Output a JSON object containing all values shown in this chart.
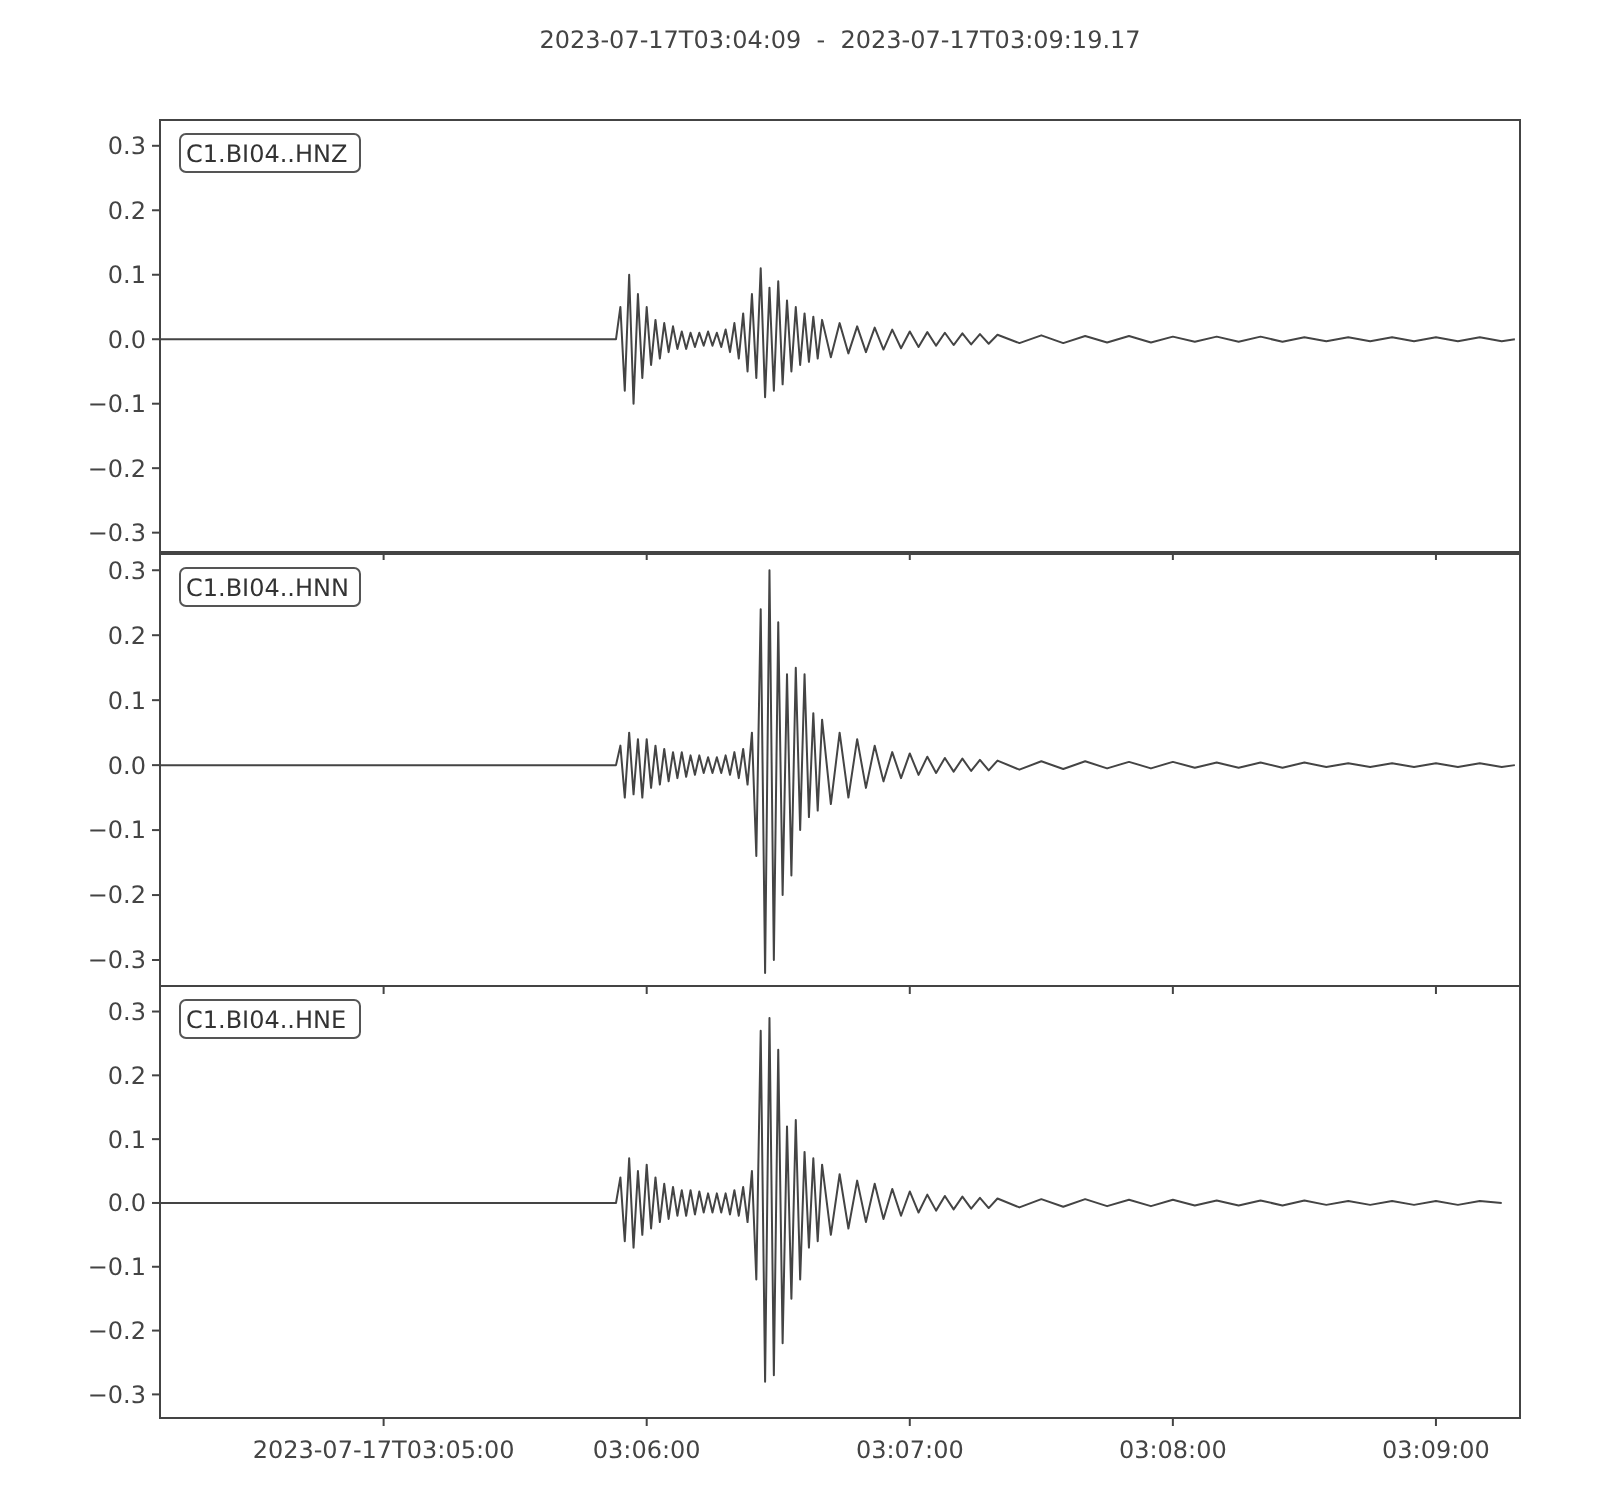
{
  "chart_data": [
    {
      "type": "line",
      "title": "2023-07-17T03:04:09  -  2023-07-17T03:09:19.17",
      "annotations": [
        "C1.BI04..HNZ"
      ],
      "tick_labels": "y",
      "color": "#444444",
      "xlim": [
        "2023-07-17T03:04:09",
        "2023-07-17T03:09:19.17"
      ],
      "ylim": [
        -0.33,
        0.34
      ],
      "xticks": [
        {
          "value": "2023-07-17T03:05:00",
          "label": null
        },
        {
          "value": "2023-07-17T03:06:00",
          "label": null
        },
        {
          "value": "2023-07-17T03:07:00",
          "label": null
        },
        {
          "value": "2023-07-17T03:08:00",
          "label": null
        },
        {
          "value": "2023-07-17T03:09:00",
          "label": null
        }
      ],
      "yticks": [
        {
          "value": -0.3,
          "label": "−0.3"
        },
        {
          "value": -0.2,
          "label": "−0.2"
        },
        {
          "value": -0.1,
          "label": "−0.1"
        },
        {
          "value": 0,
          "label": "0.0"
        },
        {
          "value": 0.1,
          "label": "0.1"
        },
        {
          "value": 0.2,
          "label": "0.2"
        },
        {
          "value": 0.3,
          "label": "0.3"
        }
      ],
      "x": [
        "2023-07-17T03:04:09",
        "2023-07-17T03:05:53",
        "2023-07-17T03:05:54",
        "2023-07-17T03:05:55",
        "2023-07-17T03:05:56",
        "2023-07-17T03:05:57",
        "2023-07-17T03:05:58",
        "2023-07-17T03:05:59",
        "2023-07-17T03:06:00",
        "2023-07-17T03:06:01",
        "2023-07-17T03:06:02",
        "2023-07-17T03:06:03",
        "2023-07-17T03:06:04",
        "2023-07-17T03:06:05",
        "2023-07-17T03:06:06",
        "2023-07-17T03:06:07",
        "2023-07-17T03:06:08",
        "2023-07-17T03:06:09",
        "2023-07-17T03:06:10",
        "2023-07-17T03:06:11",
        "2023-07-17T03:06:12",
        "2023-07-17T03:06:13",
        "2023-07-17T03:06:14",
        "2023-07-17T03:06:15",
        "2023-07-17T03:06:16",
        "2023-07-17T03:06:17",
        "2023-07-17T03:06:18",
        "2023-07-17T03:06:19",
        "2023-07-17T03:06:20",
        "2023-07-17T03:06:21",
        "2023-07-17T03:06:22",
        "2023-07-17T03:06:23",
        "2023-07-17T03:06:24",
        "2023-07-17T03:06:25",
        "2023-07-17T03:06:26",
        "2023-07-17T03:06:27",
        "2023-07-17T03:06:28",
        "2023-07-17T03:06:29",
        "2023-07-17T03:06:30",
        "2023-07-17T03:06:31",
        "2023-07-17T03:06:32",
        "2023-07-17T03:06:33",
        "2023-07-17T03:06:34",
        "2023-07-17T03:06:35",
        "2023-07-17T03:06:36",
        "2023-07-17T03:06:37",
        "2023-07-17T03:06:38",
        "2023-07-17T03:06:39",
        "2023-07-17T03:06:40",
        "2023-07-17T03:06:42",
        "2023-07-17T03:06:44",
        "2023-07-17T03:06:46",
        "2023-07-17T03:06:48",
        "2023-07-17T03:06:50",
        "2023-07-17T03:06:52",
        "2023-07-17T03:06:54",
        "2023-07-17T03:06:56",
        "2023-07-17T03:06:58",
        "2023-07-17T03:07:00",
        "2023-07-17T03:07:02",
        "2023-07-17T03:07:04",
        "2023-07-17T03:07:06",
        "2023-07-17T03:07:08",
        "2023-07-17T03:07:10",
        "2023-07-17T03:07:12",
        "2023-07-17T03:07:14",
        "2023-07-17T03:07:16",
        "2023-07-17T03:07:18",
        "2023-07-17T03:07:20",
        "2023-07-17T03:07:25",
        "2023-07-17T03:07:30",
        "2023-07-17T03:07:35",
        "2023-07-17T03:07:40",
        "2023-07-17T03:07:45",
        "2023-07-17T03:07:50",
        "2023-07-17T03:07:55",
        "2023-07-17T03:08:00",
        "2023-07-17T03:08:05",
        "2023-07-17T03:08:10",
        "2023-07-17T03:08:15",
        "2023-07-17T03:08:20",
        "2023-07-17T03:08:25",
        "2023-07-17T03:08:30",
        "2023-07-17T03:08:35",
        "2023-07-17T03:08:40",
        "2023-07-17T03:08:45",
        "2023-07-17T03:08:50",
        "2023-07-17T03:08:55",
        "2023-07-17T03:09:00",
        "2023-07-17T03:09:05",
        "2023-07-17T03:09:10",
        "2023-07-17T03:09:15",
        "2023-07-17T03:09:18"
      ],
      "values": [
        0,
        0,
        0.05,
        -0.08,
        0.1,
        -0.1,
        0.07,
        -0.06,
        0.05,
        -0.04,
        0.03,
        -0.03,
        0.025,
        -0.02,
        0.02,
        -0.015,
        0.012,
        -0.015,
        0.01,
        -0.012,
        0.01,
        -0.01,
        0.012,
        -0.01,
        0.01,
        -0.012,
        0.015,
        -0.02,
        0.025,
        -0.03,
        0.04,
        -0.05,
        0.07,
        -0.06,
        0.11,
        -0.09,
        0.08,
        -0.08,
        0.09,
        -0.07,
        0.06,
        -0.05,
        0.05,
        -0.04,
        0.04,
        -0.035,
        0.035,
        -0.03,
        0.03,
        -0.028,
        0.025,
        -0.022,
        0.02,
        -0.02,
        0.018,
        -0.016,
        0.015,
        -0.014,
        0.012,
        -0.012,
        0.011,
        -0.01,
        0.01,
        -0.009,
        0.009,
        -0.008,
        0.008,
        -0.007,
        0.007,
        -0.006,
        0.006,
        -0.006,
        0.005,
        -0.005,
        0.005,
        -0.005,
        0.004,
        -0.004,
        0.004,
        -0.004,
        0.004,
        -0.004,
        0.003,
        -0.003,
        0.003,
        -0.003,
        0.003,
        -0.003,
        0.003,
        -0.003,
        0.003,
        -0.003,
        0
      ]
    },
    {
      "type": "line",
      "annotations": [
        "C1.BI04..HNN"
      ],
      "tick_labels": "y",
      "color": "#444444",
      "xlim": [
        "2023-07-17T03:04:09",
        "2023-07-17T03:09:19.17"
      ],
      "ylim": [
        -0.34,
        0.325
      ],
      "xticks": [
        {
          "value": "2023-07-17T03:05:00",
          "label": null
        },
        {
          "value": "2023-07-17T03:06:00",
          "label": null
        },
        {
          "value": "2023-07-17T03:07:00",
          "label": null
        },
        {
          "value": "2023-07-17T03:08:00",
          "label": null
        },
        {
          "value": "2023-07-17T03:09:00",
          "label": null
        }
      ],
      "yticks": [
        {
          "value": -0.3,
          "label": "−0.3"
        },
        {
          "value": -0.2,
          "label": "−0.2"
        },
        {
          "value": -0.1,
          "label": "−0.1"
        },
        {
          "value": 0,
          "label": "0.0"
        },
        {
          "value": 0.1,
          "label": "0.1"
        },
        {
          "value": 0.2,
          "label": "0.2"
        },
        {
          "value": 0.3,
          "label": "0.3"
        }
      ],
      "x": [
        "2023-07-17T03:04:09",
        "2023-07-17T03:05:53",
        "2023-07-17T03:05:54",
        "2023-07-17T03:05:55",
        "2023-07-17T03:05:56",
        "2023-07-17T03:05:57",
        "2023-07-17T03:05:58",
        "2023-07-17T03:05:59",
        "2023-07-17T03:06:00",
        "2023-07-17T03:06:01",
        "2023-07-17T03:06:02",
        "2023-07-17T03:06:03",
        "2023-07-17T03:06:04",
        "2023-07-17T03:06:05",
        "2023-07-17T03:06:06",
        "2023-07-17T03:06:07",
        "2023-07-17T03:06:08",
        "2023-07-17T03:06:09",
        "2023-07-17T03:06:10",
        "2023-07-17T03:06:11",
        "2023-07-17T03:06:12",
        "2023-07-17T03:06:13",
        "2023-07-17T03:06:14",
        "2023-07-17T03:06:15",
        "2023-07-17T03:06:16",
        "2023-07-17T03:06:17",
        "2023-07-17T03:06:18",
        "2023-07-17T03:06:19",
        "2023-07-17T03:06:20",
        "2023-07-17T03:06:21",
        "2023-07-17T03:06:22",
        "2023-07-17T03:06:23",
        "2023-07-17T03:06:24",
        "2023-07-17T03:06:25",
        "2023-07-17T03:06:26",
        "2023-07-17T03:06:27",
        "2023-07-17T03:06:28",
        "2023-07-17T03:06:29",
        "2023-07-17T03:06:30",
        "2023-07-17T03:06:31",
        "2023-07-17T03:06:32",
        "2023-07-17T03:06:33",
        "2023-07-17T03:06:34",
        "2023-07-17T03:06:35",
        "2023-07-17T03:06:36",
        "2023-07-17T03:06:37",
        "2023-07-17T03:06:38",
        "2023-07-17T03:06:39",
        "2023-07-17T03:06:40",
        "2023-07-17T03:06:42",
        "2023-07-17T03:06:44",
        "2023-07-17T03:06:46",
        "2023-07-17T03:06:48",
        "2023-07-17T03:06:50",
        "2023-07-17T03:06:52",
        "2023-07-17T03:06:54",
        "2023-07-17T03:06:56",
        "2023-07-17T03:06:58",
        "2023-07-17T03:07:00",
        "2023-07-17T03:07:02",
        "2023-07-17T03:07:04",
        "2023-07-17T03:07:06",
        "2023-07-17T03:07:08",
        "2023-07-17T03:07:10",
        "2023-07-17T03:07:12",
        "2023-07-17T03:07:14",
        "2023-07-17T03:07:16",
        "2023-07-17T03:07:18",
        "2023-07-17T03:07:20",
        "2023-07-17T03:07:25",
        "2023-07-17T03:07:30",
        "2023-07-17T03:07:35",
        "2023-07-17T03:07:40",
        "2023-07-17T03:07:45",
        "2023-07-17T03:07:50",
        "2023-07-17T03:07:55",
        "2023-07-17T03:08:00",
        "2023-07-17T03:08:05",
        "2023-07-17T03:08:10",
        "2023-07-17T03:08:15",
        "2023-07-17T03:08:20",
        "2023-07-17T03:08:25",
        "2023-07-17T03:08:30",
        "2023-07-17T03:08:35",
        "2023-07-17T03:08:40",
        "2023-07-17T03:08:45",
        "2023-07-17T03:08:50",
        "2023-07-17T03:08:55",
        "2023-07-17T03:09:00",
        "2023-07-17T03:09:05",
        "2023-07-17T03:09:10",
        "2023-07-17T03:09:15",
        "2023-07-17T03:09:18"
      ],
      "values": [
        0,
        0,
        0.03,
        -0.05,
        0.05,
        -0.045,
        0.04,
        -0.05,
        0.04,
        -0.035,
        0.03,
        -0.03,
        0.025,
        -0.025,
        0.02,
        -0.02,
        0.02,
        -0.018,
        0.015,
        -0.015,
        0.015,
        -0.012,
        0.012,
        -0.012,
        0.012,
        -0.012,
        0.015,
        -0.015,
        0.02,
        -0.02,
        0.025,
        -0.03,
        0.05,
        -0.14,
        0.24,
        -0.32,
        0.3,
        -0.3,
        0.22,
        -0.2,
        0.14,
        -0.17,
        0.15,
        -0.1,
        0.14,
        -0.08,
        0.08,
        -0.07,
        0.07,
        -0.06,
        0.05,
        -0.05,
        0.04,
        -0.035,
        0.03,
        -0.025,
        0.02,
        -0.02,
        0.018,
        -0.015,
        0.013,
        -0.012,
        0.011,
        -0.01,
        0.01,
        -0.009,
        0.008,
        -0.008,
        0.007,
        -0.007,
        0.006,
        -0.006,
        0.006,
        -0.005,
        0.005,
        -0.005,
        0.005,
        -0.004,
        0.004,
        -0.004,
        0.004,
        -0.004,
        0.004,
        -0.003,
        0.003,
        -0.003,
        0.003,
        -0.003,
        0.003,
        -0.003,
        0.003,
        -0.003,
        0
      ]
    },
    {
      "type": "line",
      "annotations": [
        "C1.BI04..HNE"
      ],
      "color": "#444444",
      "xlim": [
        "2023-07-17T03:04:09",
        "2023-07-17T03:09:19.17"
      ],
      "ylim": [
        -0.337,
        0.34
      ],
      "xticks": [
        {
          "value": "2023-07-17T03:05:00",
          "label": "2023-07-17T03:05:00"
        },
        {
          "value": "2023-07-17T03:06:00",
          "label": "03:06:00"
        },
        {
          "value": "2023-07-17T03:07:00",
          "label": "03:07:00"
        },
        {
          "value": "2023-07-17T03:08:00",
          "label": "03:08:00"
        },
        {
          "value": "2023-07-17T03:09:00",
          "label": "03:09:00"
        }
      ],
      "yticks": [
        {
          "value": -0.3,
          "label": "−0.3"
        },
        {
          "value": -0.2,
          "label": "−0.2"
        },
        {
          "value": -0.1,
          "label": "−0.1"
        },
        {
          "value": 0,
          "label": "0.0"
        },
        {
          "value": 0.1,
          "label": "0.1"
        },
        {
          "value": 0.2,
          "label": "0.2"
        },
        {
          "value": 0.3,
          "label": "0.3"
        }
      ],
      "x": [
        "2023-07-17T03:04:09",
        "2023-07-17T03:05:53",
        "2023-07-17T03:05:54",
        "2023-07-17T03:05:55",
        "2023-07-17T03:05:56",
        "2023-07-17T03:05:57",
        "2023-07-17T03:05:58",
        "2023-07-17T03:05:59",
        "2023-07-17T03:06:00",
        "2023-07-17T03:06:01",
        "2023-07-17T03:06:02",
        "2023-07-17T03:06:03",
        "2023-07-17T03:06:04",
        "2023-07-17T03:06:05",
        "2023-07-17T03:06:06",
        "2023-07-17T03:06:07",
        "2023-07-17T03:06:08",
        "2023-07-17T03:06:09",
        "2023-07-17T03:06:10",
        "2023-07-17T03:06:11",
        "2023-07-17T03:06:12",
        "2023-07-17T03:06:13",
        "2023-07-17T03:06:14",
        "2023-07-17T03:06:15",
        "2023-07-17T03:06:16",
        "2023-07-17T03:06:17",
        "2023-07-17T03:06:18",
        "2023-07-17T03:06:19",
        "2023-07-17T03:06:20",
        "2023-07-17T03:06:21",
        "2023-07-17T03:06:22",
        "2023-07-17T03:06:23",
        "2023-07-17T03:06:24",
        "2023-07-17T03:06:25",
        "2023-07-17T03:06:26",
        "2023-07-17T03:06:27",
        "2023-07-17T03:06:28",
        "2023-07-17T03:06:29",
        "2023-07-17T03:06:30",
        "2023-07-17T03:06:31",
        "2023-07-17T03:06:32",
        "2023-07-17T03:06:33",
        "2023-07-17T03:06:34",
        "2023-07-17T03:06:35",
        "2023-07-17T03:06:36",
        "2023-07-17T03:06:37",
        "2023-07-17T03:06:38",
        "2023-07-17T03:06:39",
        "2023-07-17T03:06:40",
        "2023-07-17T03:06:42",
        "2023-07-17T03:06:44",
        "2023-07-17T03:06:46",
        "2023-07-17T03:06:48",
        "2023-07-17T03:06:50",
        "2023-07-17T03:06:52",
        "2023-07-17T03:06:54",
        "2023-07-17T03:06:56",
        "2023-07-17T03:06:58",
        "2023-07-17T03:07:00",
        "2023-07-17T03:07:02",
        "2023-07-17T03:07:04",
        "2023-07-17T03:07:06",
        "2023-07-17T03:07:08",
        "2023-07-17T03:07:10",
        "2023-07-17T03:07:12",
        "2023-07-17T03:07:14",
        "2023-07-17T03:07:16",
        "2023-07-17T03:07:18",
        "2023-07-17T03:07:20",
        "2023-07-17T03:07:25",
        "2023-07-17T03:07:30",
        "2023-07-17T03:07:35",
        "2023-07-17T03:07:40",
        "2023-07-17T03:07:45",
        "2023-07-17T03:07:50",
        "2023-07-17T03:07:55",
        "2023-07-17T03:08:00",
        "2023-07-17T03:08:05",
        "2023-07-17T03:08:10",
        "2023-07-17T03:08:15",
        "2023-07-17T03:08:20",
        "2023-07-17T03:08:25",
        "2023-07-17T03:08:30",
        "2023-07-17T03:08:35",
        "2023-07-17T03:08:40",
        "2023-07-17T03:08:45",
        "2023-07-17T03:08:50",
        "2023-07-17T03:08:55",
        "2023-07-17T03:09:00",
        "2023-07-17T03:09:05",
        "2023-07-17T03:09:10",
        "2023-07-17T03:09:15"
      ],
      "values": [
        0,
        0,
        0.04,
        -0.06,
        0.07,
        -0.07,
        0.05,
        -0.05,
        0.06,
        -0.04,
        0.04,
        -0.03,
        0.03,
        -0.025,
        0.025,
        -0.02,
        0.02,
        -0.02,
        0.02,
        -0.018,
        0.018,
        -0.015,
        0.015,
        -0.015,
        0.015,
        -0.015,
        0.015,
        -0.018,
        0.02,
        -0.02,
        0.025,
        -0.03,
        0.05,
        -0.12,
        0.27,
        -0.28,
        0.29,
        -0.27,
        0.24,
        -0.22,
        0.12,
        -0.15,
        0.13,
        -0.12,
        0.08,
        -0.07,
        0.07,
        -0.06,
        0.06,
        -0.05,
        0.045,
        -0.04,
        0.035,
        -0.03,
        0.03,
        -0.025,
        0.022,
        -0.02,
        0.018,
        -0.015,
        0.013,
        -0.012,
        0.011,
        -0.01,
        0.01,
        -0.009,
        0.008,
        -0.008,
        0.007,
        -0.007,
        0.006,
        -0.006,
        0.006,
        -0.005,
        0.005,
        -0.005,
        0.005,
        -0.004,
        0.004,
        -0.004,
        0.004,
        -0.004,
        0.004,
        -0.003,
        0.003,
        -0.003,
        0.003,
        -0.003,
        0.003,
        -0.003,
        0.003,
        0
      ]
    }
  ]
}
